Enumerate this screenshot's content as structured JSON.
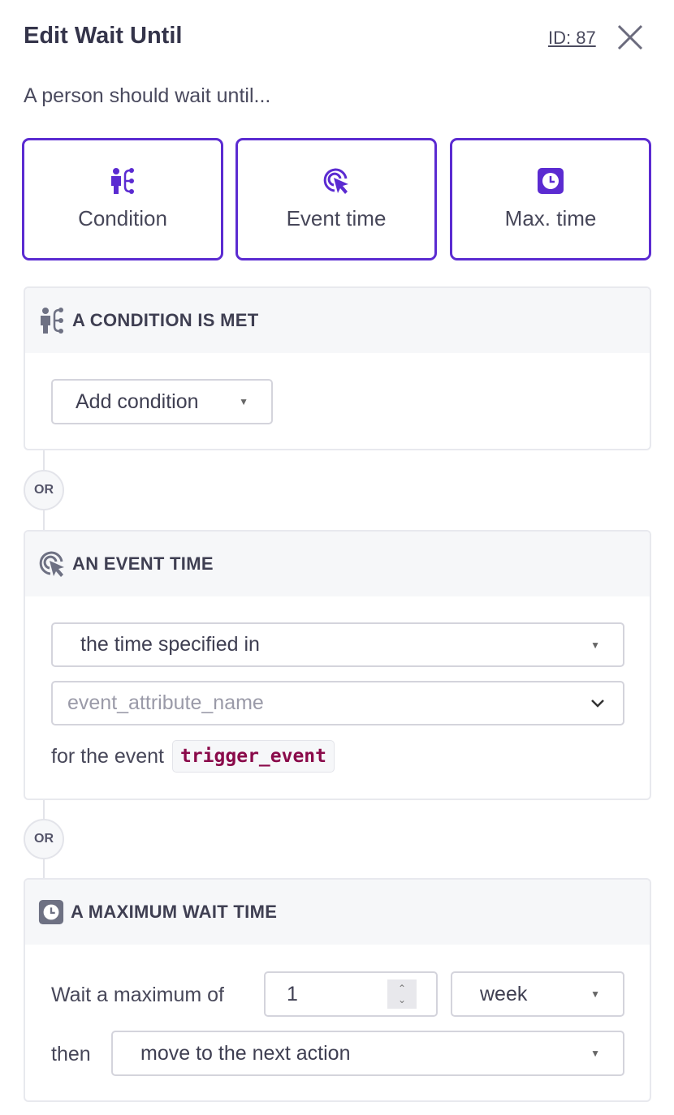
{
  "header": {
    "title": "Edit Wait Until",
    "id_label": "ID: 87"
  },
  "subtitle": "A person should wait until...",
  "accent": "#5b2bd1",
  "options": [
    {
      "label": "Condition",
      "icon": "person-branch-icon"
    },
    {
      "label": "Event time",
      "icon": "target-cursor-icon"
    },
    {
      "label": "Max. time",
      "icon": "clock-icon"
    }
  ],
  "condition": {
    "heading": "A CONDITION IS MET",
    "add_label": "Add condition"
  },
  "or_label": "OR",
  "event": {
    "heading": "AN EVENT TIME",
    "select_value": "the time specified in",
    "attr_placeholder": "event_attribute_name",
    "for_text": "for the event",
    "event_name": "trigger_event"
  },
  "maxwait": {
    "heading": "A MAXIMUM WAIT TIME",
    "wait_label": "Wait a maximum of",
    "amount": "1",
    "unit": "week",
    "then_label": "then",
    "then_value": "move to the next action"
  }
}
